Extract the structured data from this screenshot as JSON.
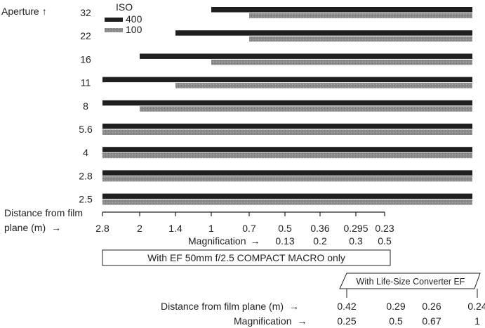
{
  "chart_data": {
    "type": "bar",
    "title": "",
    "yaxis_label": "Aperture",
    "ylabel_arrow": "↑",
    "legend": {
      "title": "ISO",
      "placement": "top-left",
      "entries": [
        {
          "name": "400",
          "color": "#1f1f1f"
        },
        {
          "name": "100",
          "color": "#8c8c8c"
        }
      ]
    },
    "apertures": [
      "32",
      "22",
      "16",
      "11",
      "8",
      "5.6",
      "4",
      "2.8",
      "2.5"
    ],
    "x_axis": {
      "label_line1": "Distance from film",
      "label_line2": "plane (m)",
      "label_arrow": "→",
      "distance_ticks": [
        "2.8",
        "2",
        "1.4",
        "1",
        "0.7",
        "0.5",
        "0.36",
        "0.295",
        "0.23"
      ],
      "magnification_label": "Magnification",
      "magnification_arrow": "→",
      "magnification_ticks": [
        "0.13",
        "0.2",
        "0.3",
        "0.5"
      ],
      "magnification_at_distance": [
        "0.5",
        "0.36",
        "0.295",
        "0.23"
      ]
    },
    "note_box": "With EF 50mm f/2.5 COMPACT MACRO only",
    "converter": {
      "box_label": "With Life-Size Converter EF",
      "distance_label": "Distance from film plane (m)",
      "distance_arrow": "→",
      "distance_ticks": [
        "0.42",
        "0.29",
        "0.26",
        "0.24"
      ],
      "magnification_label": "Magnification",
      "magnification_arrow": "→",
      "magnification_ticks": [
        "0.25",
        "0.5",
        "0.67",
        "1"
      ]
    },
    "series": [
      {
        "name": "400",
        "aperture_start_distance": [
          "1",
          "1.4",
          "2",
          "2.8",
          "2.8",
          "2.8",
          "2.8",
          "2.8",
          "2.8"
        ]
      },
      {
        "name": "100",
        "aperture_start_distance": [
          "0.7",
          "0.7",
          "1",
          "1.4",
          "2",
          "2.8",
          "2.8",
          "2.8",
          "2.8"
        ]
      }
    ]
  }
}
